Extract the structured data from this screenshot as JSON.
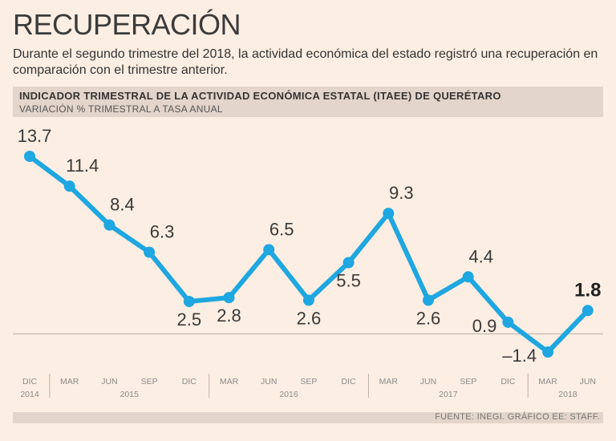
{
  "header": {
    "title": "RECUPERACIÓN",
    "subtitle": "Durante el segundo trimestre del 2018, la actividad económica del estado registró una recuperación en comparación con el trimestre anterior."
  },
  "chart_data": {
    "type": "line",
    "title": "INDICADOR TRIMESTRAL DE LA ACTIVIDAD ECONÓMICA ESTATAL (ITAEE) DE QUERÉTARO",
    "subtitle": "VARIACIÓN % TRIMESTRAL A TASA ANUAL",
    "categories": [
      "DIC",
      "MAR",
      "JUN",
      "SEP",
      "DIC",
      "MAR",
      "JUN",
      "SEP",
      "DIC",
      "MAR",
      "JUN",
      "SEP",
      "DIC",
      "MAR",
      "JUN"
    ],
    "values": [
      13.7,
      11.4,
      8.4,
      6.3,
      2.5,
      2.8,
      6.5,
      2.6,
      5.5,
      9.3,
      2.6,
      4.4,
      0.9,
      -1.4,
      1.8
    ],
    "value_labels": [
      "13.7",
      "11.4",
      "8.4",
      "6.3",
      "2.5",
      "2.8",
      "6.5",
      "2.6",
      "5.5",
      "9.3",
      "2.6",
      "4.4",
      "0.9",
      "–1.4",
      "1.8"
    ],
    "label_placement": [
      "above",
      "above",
      "above",
      "above",
      "below",
      "below",
      "above",
      "below",
      "below",
      "above",
      "below",
      "above",
      "left",
      "left",
      "above"
    ],
    "highlight_last": true,
    "year_groups": [
      {
        "label": "2014",
        "from": 0,
        "to": 0
      },
      {
        "label": "2015",
        "from": 1,
        "to": 4
      },
      {
        "label": "2016",
        "from": 5,
        "to": 8
      },
      {
        "label": "2017",
        "from": 9,
        "to": 12
      },
      {
        "label": "2018",
        "from": 13,
        "to": 14
      }
    ],
    "ylim": [
      -1.4,
      13.7
    ],
    "zero_line": true,
    "line_color": "#1ea7e1",
    "xlabel": "",
    "ylabel": ""
  },
  "footer": {
    "source": "FUENTE: INEGI. GRÁFICO EE: STAFF."
  }
}
